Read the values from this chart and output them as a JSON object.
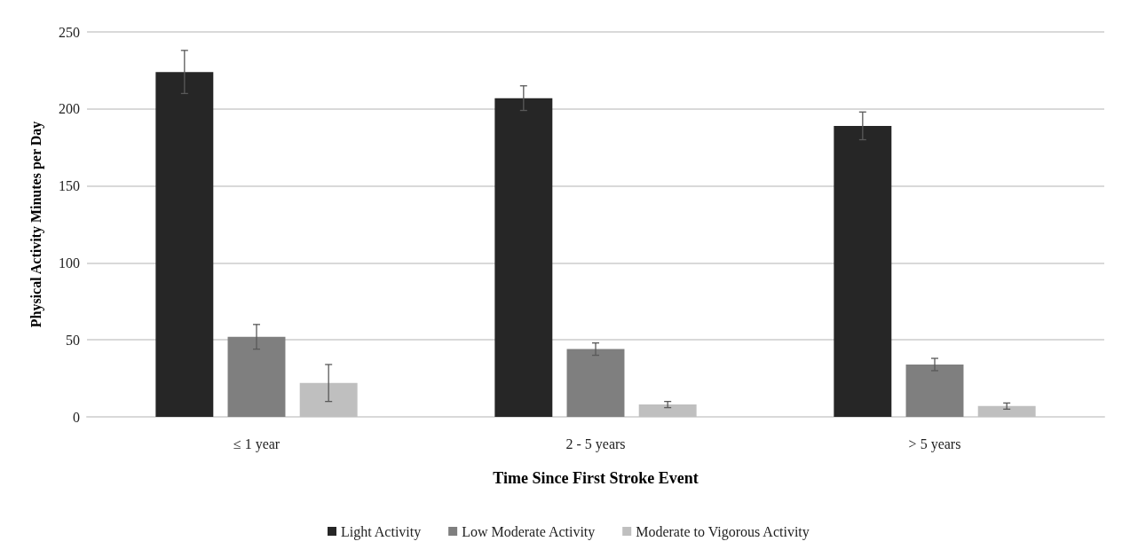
{
  "chart_data": {
    "type": "bar",
    "xlabel": "Time Since First Stroke Event",
    "ylabel": "Physical Activity Minutes per Day",
    "categories": [
      "≤ 1 year",
      "2 - 5 years",
      "> 5 years"
    ],
    "series": [
      {
        "name": "Light Activity",
        "color": "#262626",
        "values": [
          224,
          207,
          189
        ],
        "errors": [
          14,
          8,
          9
        ]
      },
      {
        "name": "Low Moderate Activity",
        "color": "#7f7f7f",
        "values": [
          52,
          44,
          34
        ],
        "errors": [
          8,
          4,
          4
        ]
      },
      {
        "name": "Moderate to Vigorous Activity",
        "color": "#bfbfbf",
        "values": [
          22,
          8,
          7
        ],
        "errors": [
          12,
          2,
          2
        ]
      }
    ],
    "ylim": [
      0,
      250
    ],
    "yticks": [
      0,
      50,
      100,
      150,
      200,
      250
    ],
    "grid": "y",
    "legend": "bottom"
  }
}
